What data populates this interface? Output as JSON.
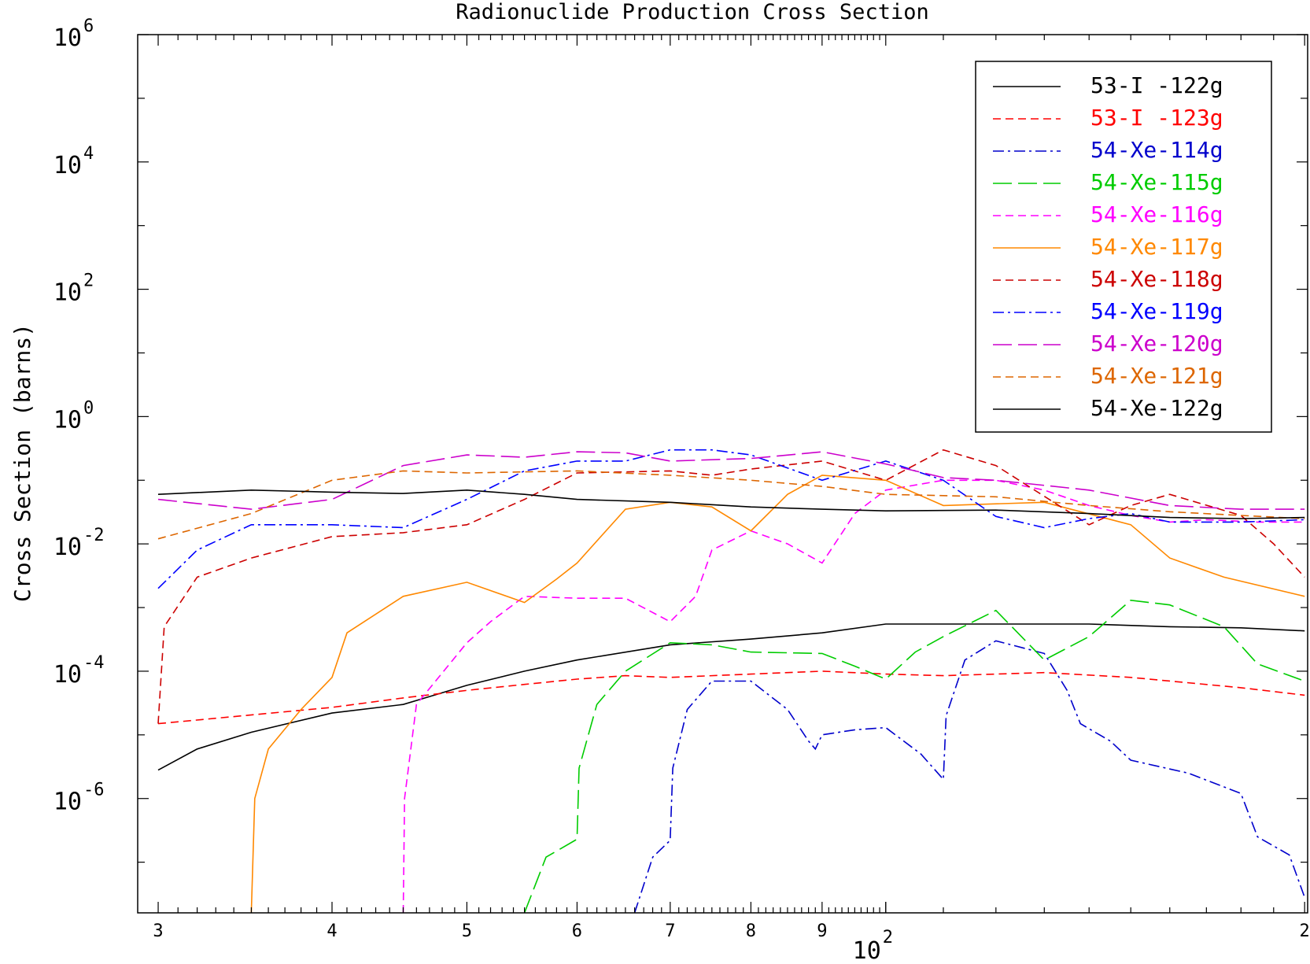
{
  "chart_data": {
    "type": "line",
    "title": "Radionuclide Production Cross Section",
    "xlabel": "",
    "ylabel": "Cross Section (barns)",
    "x_scale": "log",
    "y_scale": "log",
    "xlim": [
      29,
      201
    ],
    "ylim": [
      1.6e-08,
      1000000
    ],
    "x_ticks": [
      {
        "v": 30,
        "label": "3"
      },
      {
        "v": 40,
        "label": "4"
      },
      {
        "v": 50,
        "label": "5"
      },
      {
        "v": 60,
        "label": "6"
      },
      {
        "v": 70,
        "label": "7"
      },
      {
        "v": 80,
        "label": "8"
      },
      {
        "v": 90,
        "label": "9"
      },
      {
        "v": 200,
        "label": "2"
      }
    ],
    "x_decade": {
      "v": 100,
      "base": "10",
      "exp": "2"
    },
    "y_ticks": [
      {
        "v": 1e-06,
        "base": "10",
        "exp": "-6"
      },
      {
        "v": 0.0001,
        "base": "10",
        "exp": "-4"
      },
      {
        "v": 0.01,
        "base": "10",
        "exp": "-2"
      },
      {
        "v": 1,
        "base": "10",
        "exp": "0"
      },
      {
        "v": 100,
        "base": "10",
        "exp": "2"
      },
      {
        "v": 10000,
        "base": "10",
        "exp": "4"
      },
      {
        "v": 1000000,
        "base": "10",
        "exp": "6"
      }
    ],
    "legend_position": "top-right",
    "series": [
      {
        "name": "53-I -122g",
        "color": "#000000",
        "dash": "solid",
        "points": [
          [
            30,
            2.8e-06
          ],
          [
            32,
            6e-06
          ],
          [
            35,
            1.1e-05
          ],
          [
            40,
            2.2e-05
          ],
          [
            45,
            3e-05
          ],
          [
            50,
            6e-05
          ],
          [
            55,
            0.0001
          ],
          [
            60,
            0.00015
          ],
          [
            70,
            0.00026
          ],
          [
            80,
            0.00032
          ],
          [
            90,
            0.0004
          ],
          [
            100,
            0.00055
          ],
          [
            120,
            0.00055
          ],
          [
            140,
            0.00055
          ],
          [
            160,
            0.0005
          ],
          [
            180,
            0.00048
          ],
          [
            200,
            0.00043
          ]
        ]
      },
      {
        "name": "53-I -123g",
        "color": "#ff0000",
        "dash": "dash",
        "points": [
          [
            30,
            1.5e-05
          ],
          [
            40,
            2.7e-05
          ],
          [
            45,
            3.8e-05
          ],
          [
            50,
            5e-05
          ],
          [
            55,
            6.2e-05
          ],
          [
            60,
            7.5e-05
          ],
          [
            65,
            8.5e-05
          ],
          [
            70,
            8e-05
          ],
          [
            80,
            9e-05
          ],
          [
            90,
            0.0001
          ],
          [
            100,
            9e-05
          ],
          [
            110,
            8.5e-05
          ],
          [
            130,
            9.5e-05
          ],
          [
            150,
            8e-05
          ],
          [
            180,
            5.5e-05
          ],
          [
            200,
            4.2e-05
          ]
        ]
      },
      {
        "name": "54-Xe-114g",
        "color": "#0000cc",
        "dash": "dashdot",
        "points": [
          [
            66,
            1.6e-08
          ],
          [
            68,
            1.2e-07
          ],
          [
            70,
            2.2e-07
          ],
          [
            70.3,
            3e-06
          ],
          [
            72,
            2.5e-05
          ],
          [
            75,
            7e-05
          ],
          [
            80,
            7e-05
          ],
          [
            85,
            2.5e-05
          ],
          [
            88,
            8e-06
          ],
          [
            89,
            6e-06
          ],
          [
            90,
            1e-05
          ],
          [
            95,
            1.2e-05
          ],
          [
            100,
            1.3e-05
          ],
          [
            106,
            5e-06
          ],
          [
            110,
            2e-06
          ],
          [
            110.5,
            2e-05
          ],
          [
            114,
            0.00015
          ],
          [
            120,
            0.0003
          ],
          [
            130,
            0.00019
          ],
          [
            135,
            5e-05
          ],
          [
            138,
            1.5e-05
          ],
          [
            145,
            8e-06
          ],
          [
            150,
            4e-06
          ],
          [
            165,
            2.5e-06
          ],
          [
            180,
            1.2e-06
          ],
          [
            185,
            2.5e-07
          ],
          [
            195,
            1.3e-07
          ],
          [
            200,
            2.8e-08
          ]
        ]
      },
      {
        "name": "54-Xe-115g",
        "color": "#00cc00",
        "dash": "longdash",
        "points": [
          [
            55,
            1.6e-08
          ],
          [
            57,
            1.2e-07
          ],
          [
            60,
            2.3e-07
          ],
          [
            60.2,
            3e-06
          ],
          [
            62,
            3e-05
          ],
          [
            65,
            0.0001
          ],
          [
            70,
            0.00028
          ],
          [
            75,
            0.00026
          ],
          [
            80,
            0.0002
          ],
          [
            90,
            0.00019
          ],
          [
            95,
            0.00012
          ],
          [
            100,
            7.5e-05
          ],
          [
            105,
            0.0002
          ],
          [
            110,
            0.00035
          ],
          [
            120,
            0.0009
          ],
          [
            130,
            0.00015
          ],
          [
            140,
            0.00035
          ],
          [
            150,
            0.0013
          ],
          [
            160,
            0.0011
          ],
          [
            175,
            0.0005
          ],
          [
            185,
            0.00013
          ],
          [
            200,
            7e-05
          ]
        ]
      },
      {
        "name": "54-Xe-116g",
        "color": "#ff00ff",
        "dash": "dash",
        "points": [
          [
            45,
            1.6e-08
          ],
          [
            45.1,
            1e-06
          ],
          [
            46,
            3e-05
          ],
          [
            50,
            0.00028
          ],
          [
            52,
            0.0006
          ],
          [
            55,
            0.0015
          ],
          [
            60,
            0.0014
          ],
          [
            65,
            0.0014
          ],
          [
            70,
            0.0006
          ],
          [
            73,
            0.0015
          ],
          [
            75,
            0.008
          ],
          [
            80,
            0.016
          ],
          [
            85,
            0.01
          ],
          [
            90,
            0.005
          ],
          [
            95,
            0.03
          ],
          [
            100,
            0.07
          ],
          [
            110,
            0.1
          ],
          [
            120,
            0.1
          ],
          [
            130,
            0.07
          ],
          [
            140,
            0.04
          ],
          [
            150,
            0.028
          ],
          [
            160,
            0.022
          ],
          [
            170,
            0.024
          ],
          [
            185,
            0.022
          ],
          [
            200,
            0.022
          ]
        ]
      },
      {
        "name": "54-Xe-117g",
        "color": "#ff8800",
        "dash": "solid",
        "points": [
          [
            35,
            1.6e-08
          ],
          [
            35.2,
            1e-06
          ],
          [
            36,
            6e-06
          ],
          [
            38,
            2.5e-05
          ],
          [
            40,
            8e-05
          ],
          [
            41,
            0.0004
          ],
          [
            45,
            0.0015
          ],
          [
            50,
            0.0025
          ],
          [
            55,
            0.0012
          ],
          [
            58,
            0.0028
          ],
          [
            60,
            0.005
          ],
          [
            65,
            0.035
          ],
          [
            70,
            0.045
          ],
          [
            75,
            0.038
          ],
          [
            80,
            0.016
          ],
          [
            85,
            0.06
          ],
          [
            90,
            0.12
          ],
          [
            100,
            0.1
          ],
          [
            110,
            0.04
          ],
          [
            130,
            0.045
          ],
          [
            150,
            0.02
          ],
          [
            160,
            0.006
          ],
          [
            175,
            0.003
          ],
          [
            200,
            0.0015
          ]
        ]
      },
      {
        "name": "54-Xe-118g",
        "color": "#cc0000",
        "dash": "dash",
        "points": [
          [
            30,
            1.5e-05
          ],
          [
            30.3,
            0.0005
          ],
          [
            32,
            0.003
          ],
          [
            35,
            0.006
          ],
          [
            40,
            0.013
          ],
          [
            45,
            0.015
          ],
          [
            50,
            0.02
          ],
          [
            55,
            0.05
          ],
          [
            60,
            0.13
          ],
          [
            70,
            0.14
          ],
          [
            75,
            0.12
          ],
          [
            80,
            0.15
          ],
          [
            90,
            0.2
          ],
          [
            100,
            0.1
          ],
          [
            110,
            0.3
          ],
          [
            120,
            0.17
          ],
          [
            140,
            0.02
          ],
          [
            150,
            0.04
          ],
          [
            160,
            0.06
          ],
          [
            180,
            0.028
          ],
          [
            190,
            0.01
          ],
          [
            200,
            0.003
          ]
        ]
      },
      {
        "name": "54-Xe-119g",
        "color": "#0000ff",
        "dash": "dashdot",
        "points": [
          [
            30,
            0.002
          ],
          [
            32,
            0.008
          ],
          [
            35,
            0.02
          ],
          [
            40,
            0.02
          ],
          [
            45,
            0.018
          ],
          [
            50,
            0.05
          ],
          [
            55,
            0.14
          ],
          [
            60,
            0.2
          ],
          [
            65,
            0.2
          ],
          [
            70,
            0.3
          ],
          [
            75,
            0.3
          ],
          [
            80,
            0.25
          ],
          [
            90,
            0.1
          ],
          [
            100,
            0.2
          ],
          [
            110,
            0.1
          ],
          [
            120,
            0.027
          ],
          [
            130,
            0.018
          ],
          [
            140,
            0.025
          ],
          [
            150,
            0.03
          ],
          [
            160,
            0.022
          ],
          [
            180,
            0.022
          ],
          [
            200,
            0.024
          ]
        ]
      },
      {
        "name": "54-Xe-120g",
        "color": "#cc00cc",
        "dash": "longdash",
        "points": [
          [
            30,
            0.05
          ],
          [
            35,
            0.035
          ],
          [
            40,
            0.05
          ],
          [
            45,
            0.17
          ],
          [
            50,
            0.25
          ],
          [
            55,
            0.23
          ],
          [
            60,
            0.28
          ],
          [
            65,
            0.27
          ],
          [
            70,
            0.2
          ],
          [
            80,
            0.22
          ],
          [
            90,
            0.28
          ],
          [
            100,
            0.18
          ],
          [
            110,
            0.11
          ],
          [
            120,
            0.1
          ],
          [
            140,
            0.07
          ],
          [
            160,
            0.04
          ],
          [
            180,
            0.035
          ],
          [
            200,
            0.035
          ]
        ]
      },
      {
        "name": "54-Xe-121g",
        "color": "#dd6600",
        "dash": "dash",
        "points": [
          [
            30,
            0.012
          ],
          [
            35,
            0.03
          ],
          [
            40,
            0.1
          ],
          [
            45,
            0.14
          ],
          [
            50,
            0.13
          ],
          [
            60,
            0.14
          ],
          [
            70,
            0.12
          ],
          [
            80,
            0.1
          ],
          [
            90,
            0.08
          ],
          [
            100,
            0.06
          ],
          [
            120,
            0.055
          ],
          [
            140,
            0.04
          ],
          [
            160,
            0.032
          ],
          [
            180,
            0.028
          ],
          [
            200,
            0.025
          ]
        ]
      },
      {
        "name": "54-Xe-122g",
        "color": "#000000",
        "dash": "solid",
        "points": [
          [
            30,
            0.06
          ],
          [
            35,
            0.07
          ],
          [
            40,
            0.065
          ],
          [
            45,
            0.062
          ],
          [
            50,
            0.07
          ],
          [
            55,
            0.06
          ],
          [
            60,
            0.05
          ],
          [
            70,
            0.045
          ],
          [
            80,
            0.038
          ],
          [
            90,
            0.035
          ],
          [
            100,
            0.033
          ],
          [
            120,
            0.034
          ],
          [
            140,
            0.03
          ],
          [
            160,
            0.026
          ],
          [
            180,
            0.025
          ],
          [
            200,
            0.026
          ]
        ]
      }
    ]
  }
}
